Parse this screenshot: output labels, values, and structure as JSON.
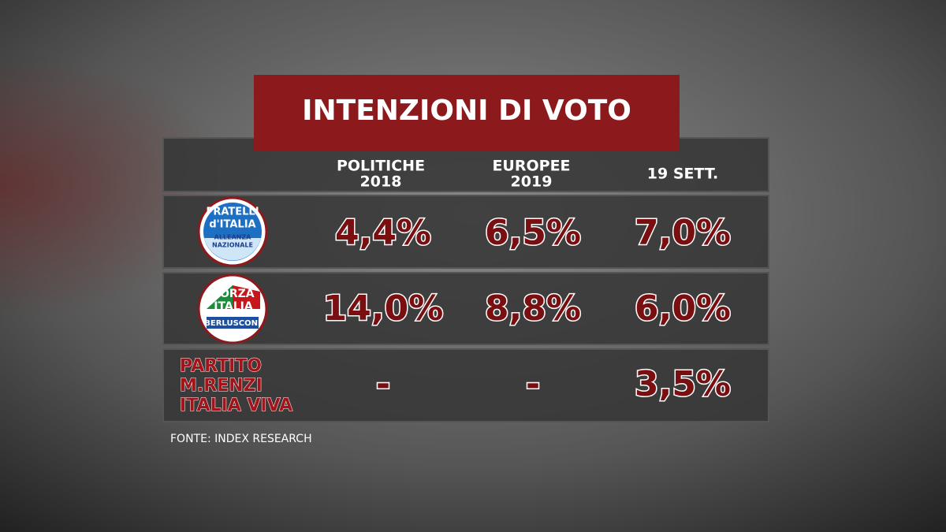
{
  "title": "INTENZIONI DI VOTO",
  "table": {
    "columns": [
      [
        "POLITICHE",
        "2018"
      ],
      [
        "EUROPEE",
        "2019"
      ],
      [
        "19 SETT."
      ]
    ],
    "rows": [
      {
        "logo": {
          "lines": [
            "FRATELLI",
            "d'ITALIA"
          ],
          "sublines": [
            "ALLEANZA",
            "NAZIONALE"
          ]
        },
        "values": [
          "4,4%",
          "6,5%",
          "7,0%"
        ]
      },
      {
        "logo": {
          "lines": [
            "FORZA",
            "ITALIA"
          ],
          "sublines": [
            "BERLUSCONI"
          ]
        },
        "values": [
          "14,0%",
          "8,8%",
          "6,0%"
        ]
      },
      {
        "label": [
          "PARTITO",
          "M.RENZI",
          "ITALIA VIVA"
        ],
        "values": [
          "-",
          "-",
          "3,5%"
        ]
      }
    ]
  },
  "source": "FONTE: INDEX RESEARCH"
}
